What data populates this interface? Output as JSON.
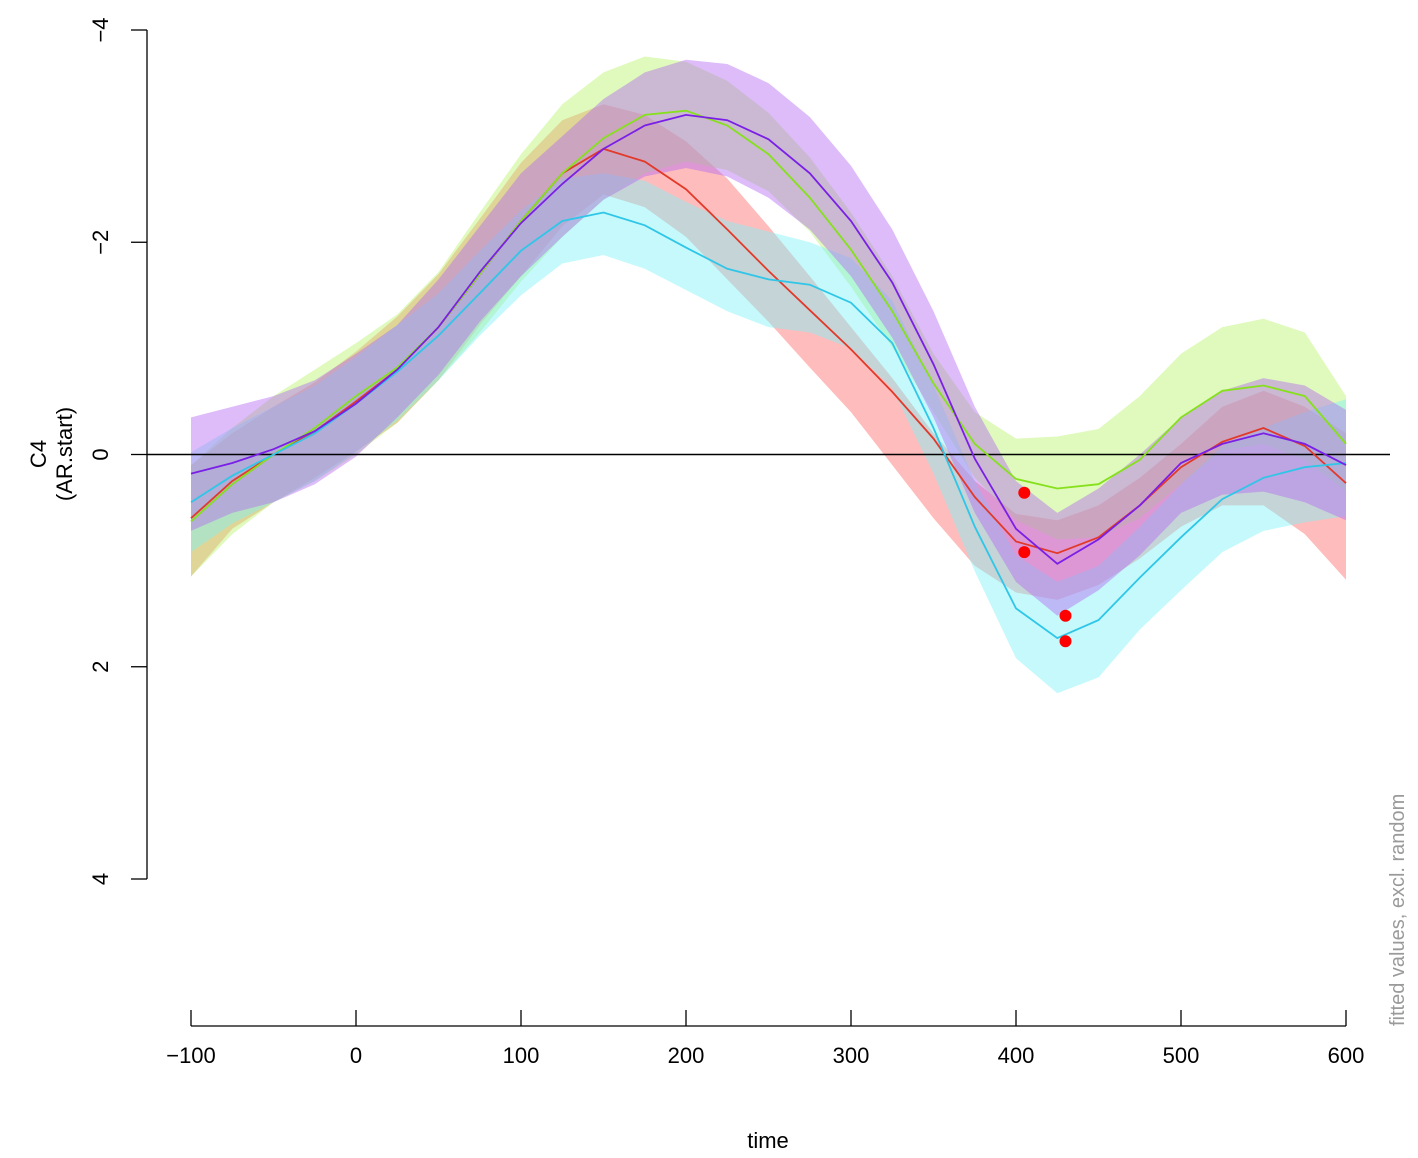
{
  "chart_data": {
    "type": "line",
    "xlabel": "time",
    "ylabel_line1": "C4",
    "ylabel_line2": "(AR.start)",
    "side_note": "fitted values, excl. random",
    "x_ticks": [
      -100,
      0,
      100,
      200,
      300,
      400,
      500,
      600
    ],
    "x_tick_labels": [
      "−100",
      "0",
      "100",
      "200",
      "300",
      "400",
      "500",
      "600"
    ],
    "y_ticks": [
      -4,
      -2,
      0,
      2,
      4
    ],
    "y_tick_labels": [
      "−4",
      "−2",
      "0",
      "2",
      "4"
    ],
    "xlim": [
      -100,
      600
    ],
    "ylim_reversed": [
      -4,
      4
    ],
    "y_axis_reversed": true,
    "reference_line_y": 0,
    "x": [
      -100,
      -75,
      -50,
      -25,
      0,
      25,
      50,
      75,
      100,
      125,
      150,
      175,
      200,
      225,
      250,
      275,
      300,
      325,
      350,
      375,
      400,
      425,
      450,
      475,
      500,
      525,
      550,
      575,
      600
    ],
    "series": [
      {
        "line_color": "#e23a2a",
        "band_color": "#ff6a6a",
        "values": [
          0.6,
          0.25,
          0.0,
          -0.22,
          -0.5,
          -0.8,
          -1.2,
          -1.7,
          -2.2,
          -2.65,
          -2.88,
          -2.76,
          -2.5,
          -2.12,
          -1.73,
          -1.36,
          -0.99,
          -0.59,
          -0.15,
          0.4,
          0.82,
          0.93,
          0.78,
          0.48,
          0.12,
          -0.12,
          -0.25,
          -0.08,
          0.27
        ],
        "lower": [
          0.1,
          -0.2,
          -0.45,
          -0.68,
          -0.97,
          -1.3,
          -1.7,
          -2.22,
          -2.75,
          -3.15,
          -3.3,
          -3.2,
          -2.95,
          -2.6,
          -2.15,
          -1.68,
          -1.2,
          -0.72,
          -0.2,
          0.25,
          0.56,
          0.62,
          0.48,
          0.22,
          -0.1,
          -0.45,
          -0.6,
          -0.45,
          -0.2
        ],
        "upper": [
          1.15,
          0.7,
          0.45,
          0.22,
          -0.03,
          -0.3,
          -0.7,
          -1.22,
          -1.68,
          -2.15,
          -2.45,
          -2.33,
          -2.05,
          -1.65,
          -1.25,
          -0.82,
          -0.4,
          0.1,
          0.6,
          1.05,
          1.3,
          1.37,
          1.23,
          0.98,
          0.68,
          0.48,
          0.48,
          0.75,
          1.18
        ]
      },
      {
        "line_color": "#86e01c",
        "band_color": "#b8f56a",
        "values": [
          0.63,
          0.28,
          0.0,
          -0.25,
          -0.55,
          -0.82,
          -1.2,
          -1.7,
          -2.2,
          -2.65,
          -2.98,
          -3.2,
          -3.24,
          -3.1,
          -2.83,
          -2.42,
          -1.93,
          -1.35,
          -0.67,
          -0.1,
          0.23,
          0.32,
          0.28,
          0.05,
          -0.35,
          -0.6,
          -0.65,
          -0.55,
          -0.1
        ],
        "lower": [
          0.1,
          -0.25,
          -0.55,
          -0.8,
          -1.05,
          -1.32,
          -1.72,
          -2.28,
          -2.83,
          -3.3,
          -3.6,
          -3.75,
          -3.7,
          -3.52,
          -3.22,
          -2.8,
          -2.28,
          -1.68,
          -0.95,
          -0.4,
          -0.15,
          -0.17,
          -0.24,
          -0.55,
          -0.95,
          -1.2,
          -1.28,
          -1.15,
          -0.55
        ],
        "upper": [
          1.15,
          0.75,
          0.45,
          0.25,
          0.0,
          -0.3,
          -0.7,
          -1.15,
          -1.63,
          -2.05,
          -2.4,
          -2.65,
          -2.76,
          -2.68,
          -2.48,
          -2.1,
          -1.58,
          -1.01,
          -0.4,
          0.22,
          0.62,
          0.8,
          0.78,
          0.6,
          0.28,
          -0.04,
          -0.1,
          0.05,
          0.35
        ]
      },
      {
        "line_color": "#2fc6e8",
        "band_color": "#7ef2f7",
        "values": [
          0.45,
          0.2,
          0.0,
          -0.2,
          -0.48,
          -0.78,
          -1.12,
          -1.52,
          -1.92,
          -2.2,
          -2.28,
          -2.16,
          -1.95,
          -1.75,
          -1.65,
          -1.6,
          -1.43,
          -1.05,
          -0.25,
          0.68,
          1.45,
          1.73,
          1.56,
          1.16,
          0.78,
          0.42,
          0.22,
          0.12,
          0.08
        ],
        "lower": [
          -0.02,
          -0.25,
          -0.45,
          -0.65,
          -0.92,
          -1.22,
          -1.52,
          -1.92,
          -2.3,
          -2.6,
          -2.65,
          -2.58,
          -2.38,
          -2.2,
          -2.1,
          -2.0,
          -1.85,
          -1.45,
          -0.65,
          0.25,
          0.95,
          1.2,
          1.05,
          0.68,
          0.28,
          -0.08,
          -0.25,
          -0.4,
          -0.52
        ],
        "upper": [
          0.92,
          0.65,
          0.45,
          0.25,
          -0.02,
          -0.32,
          -0.7,
          -1.12,
          -1.5,
          -1.8,
          -1.88,
          -1.75,
          -1.55,
          -1.35,
          -1.2,
          -1.15,
          -1.0,
          -0.62,
          0.18,
          1.1,
          1.92,
          2.25,
          2.1,
          1.65,
          1.28,
          0.92,
          0.72,
          0.64,
          0.58
        ]
      },
      {
        "line_color": "#7a1fe6",
        "band_color": "#b36bf2",
        "values": [
          0.18,
          0.08,
          -0.05,
          -0.22,
          -0.48,
          -0.8,
          -1.2,
          -1.72,
          -2.18,
          -2.55,
          -2.88,
          -3.1,
          -3.2,
          -3.15,
          -2.97,
          -2.65,
          -2.2,
          -1.62,
          -0.85,
          0.04,
          0.7,
          1.03,
          0.8,
          0.48,
          0.08,
          -0.1,
          -0.2,
          -0.1,
          0.1
        ],
        "lower": [
          -0.35,
          -0.45,
          -0.55,
          -0.7,
          -0.95,
          -1.22,
          -1.65,
          -2.15,
          -2.65,
          -3.0,
          -3.35,
          -3.6,
          -3.72,
          -3.68,
          -3.5,
          -3.18,
          -2.72,
          -2.12,
          -1.35,
          -0.45,
          0.25,
          0.55,
          0.32,
          0.0,
          -0.35,
          -0.6,
          -0.72,
          -0.65,
          -0.42
        ],
        "upper": [
          0.72,
          0.55,
          0.45,
          0.28,
          0.02,
          -0.35,
          -0.75,
          -1.25,
          -1.68,
          -2.05,
          -2.4,
          -2.62,
          -2.7,
          -2.62,
          -2.42,
          -2.12,
          -1.68,
          -1.1,
          -0.35,
          0.55,
          1.2,
          1.52,
          1.28,
          0.95,
          0.55,
          0.38,
          0.35,
          0.45,
          0.62
        ]
      }
    ],
    "marked_peaks": [
      {
        "x": 405,
        "y": 0.92
      },
      {
        "x": 405,
        "y": 0.36
      },
      {
        "x": 430,
        "y": 1.76
      },
      {
        "x": 430,
        "y": 1.52
      }
    ],
    "peak_marker_color": "#ff0000"
  }
}
